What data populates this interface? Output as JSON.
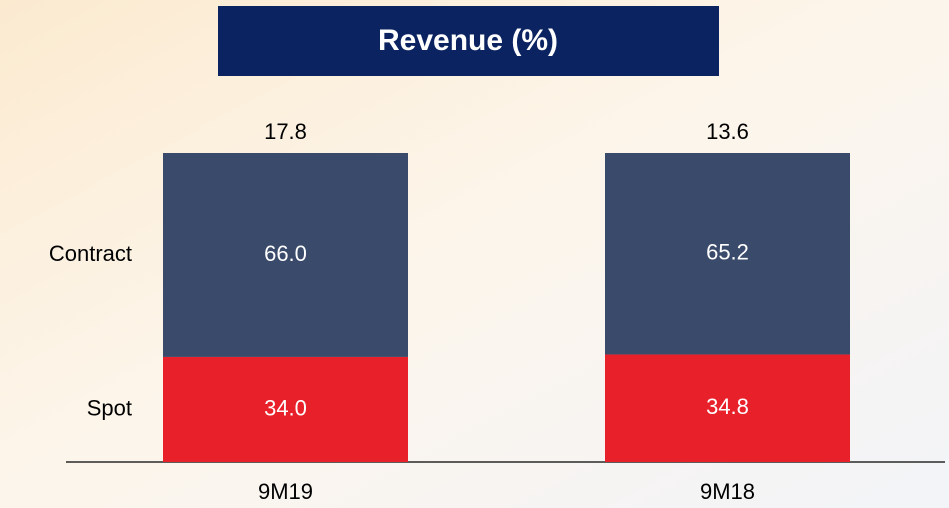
{
  "chart_data": {
    "type": "stacked_bar",
    "title": "Revenue (%)",
    "categories": [
      "9M19",
      "9M18"
    ],
    "series": [
      {
        "name": "Spot",
        "color": "#e8202a",
        "values": [
          34,
          34.8
        ],
        "value_labels": [
          "34.0",
          "34.8"
        ]
      },
      {
        "name": "Contract",
        "color": "#3a4a6b",
        "values": [
          66,
          65.2
        ],
        "value_labels": [
          "66.0",
          "65.2"
        ]
      }
    ],
    "top_values": [
      17.8,
      13.6
    ],
    "ylim": [
      0,
      100
    ],
    "title_color": "#0b2461"
  }
}
